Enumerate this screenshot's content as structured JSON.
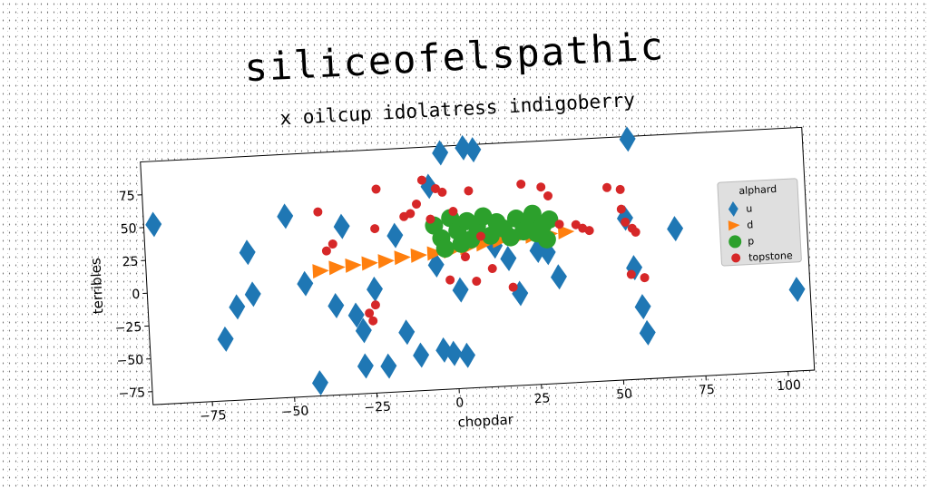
{
  "chart_data": {
    "type": "scatter",
    "title": "siliceofelspathic",
    "subtitle": "x oilcup idolatress indigoberry",
    "xlabel": "chopdar",
    "ylabel": "terribles",
    "xlim": [
      -93,
      108
    ],
    "ylim": [
      -85,
      100
    ],
    "xticks": [
      -75,
      -50,
      -25,
      0,
      25,
      50,
      75,
      100
    ],
    "yticks": [
      -75,
      -50,
      -25,
      0,
      25,
      50,
      75
    ],
    "grid": false,
    "legend": {
      "title": "alphard",
      "placement": "right"
    },
    "series": [
      {
        "name": "u",
        "marker": "diamond",
        "color": "#1f77b4",
        "points": [
          [
            -90,
            52
          ],
          [
            -70,
            -38
          ],
          [
            -66,
            -14
          ],
          [
            -62,
            27
          ],
          [
            -61,
            -5
          ],
          [
            -50,
            53
          ],
          [
            -45,
            1
          ],
          [
            -42,
            -75
          ],
          [
            -36,
            -17
          ],
          [
            -33,
            43
          ],
          [
            -30,
            -25
          ],
          [
            -28,
            -37
          ],
          [
            -28,
            -64
          ],
          [
            -24,
            -6
          ],
          [
            -21,
            -65
          ],
          [
            -17,
            34
          ],
          [
            -15,
            -40
          ],
          [
            -11,
            -58
          ],
          [
            -6,
            70
          ],
          [
            -5,
            10
          ],
          [
            -4,
            -55
          ],
          [
            -2,
            95
          ],
          [
            -1,
            -58
          ],
          [
            2,
            -10
          ],
          [
            3,
            -60
          ],
          [
            5,
            98
          ],
          [
            8,
            96
          ],
          [
            13,
            22
          ],
          [
            17,
            12
          ],
          [
            20,
            -15
          ],
          [
            26,
            17
          ],
          [
            29,
            15
          ],
          [
            32,
            -4
          ],
          [
            53,
            38
          ],
          [
            55,
            98
          ],
          [
            55,
            0
          ],
          [
            57,
            -30
          ],
          [
            58,
            -50
          ],
          [
            68,
            28
          ],
          [
            104,
            -23
          ]
        ]
      },
      {
        "name": "d",
        "marker": "triangle-right",
        "color": "#ff7f0e",
        "points": [
          [
            -40,
            10
          ],
          [
            -35,
            12
          ],
          [
            -30,
            13
          ],
          [
            -25,
            14
          ],
          [
            -20,
            15
          ],
          [
            -15,
            17
          ],
          [
            -10,
            18
          ],
          [
            -5,
            19
          ],
          [
            0,
            20
          ],
          [
            5,
            22
          ],
          [
            10,
            24
          ],
          [
            15,
            26
          ],
          [
            20,
            27
          ],
          [
            25,
            28
          ],
          [
            30,
            29
          ],
          [
            35,
            30
          ]
        ]
      },
      {
        "name": "p",
        "marker": "circle",
        "color": "#2ca02c",
        "points": [
          [
            -5,
            40
          ],
          [
            -3,
            30
          ],
          [
            -2,
            22
          ],
          [
            0,
            45
          ],
          [
            2,
            35
          ],
          [
            3,
            25
          ],
          [
            5,
            42
          ],
          [
            6,
            28
          ],
          [
            8,
            38
          ],
          [
            10,
            45
          ],
          [
            12,
            30
          ],
          [
            14,
            40
          ],
          [
            16,
            35
          ],
          [
            18,
            28
          ],
          [
            20,
            42
          ],
          [
            22,
            32
          ],
          [
            24,
            38
          ],
          [
            25,
            45
          ],
          [
            26,
            30
          ],
          [
            28,
            36
          ],
          [
            29,
            25
          ],
          [
            30,
            40
          ]
        ]
      },
      {
        "name": "topstone",
        "marker": "dot",
        "color": "#d62728",
        "points": [
          [
            -40,
            55
          ],
          [
            -38,
            25
          ],
          [
            -36,
            30
          ],
          [
            -26,
            -24
          ],
          [
            -25,
            -30
          ],
          [
            -24,
            -18
          ],
          [
            -23,
            40
          ],
          [
            -22,
            70
          ],
          [
            -14,
            48
          ],
          [
            -12,
            50
          ],
          [
            -10,
            57
          ],
          [
            -8,
            75
          ],
          [
            -6,
            45
          ],
          [
            -4,
            68
          ],
          [
            -2,
            65
          ],
          [
            -1,
            -2
          ],
          [
            1,
            50
          ],
          [
            4,
            15
          ],
          [
            6,
            65
          ],
          [
            7,
            -4
          ],
          [
            9,
            30
          ],
          [
            12,
            5
          ],
          [
            18,
            -10
          ],
          [
            22,
            68
          ],
          [
            28,
            65
          ],
          [
            30,
            58
          ],
          [
            33,
            36
          ],
          [
            38,
            35
          ],
          [
            40,
            32
          ],
          [
            42,
            30
          ],
          [
            48,
            62
          ],
          [
            52,
            60
          ],
          [
            52,
            45
          ],
          [
            53,
            35
          ],
          [
            54,
            -5
          ],
          [
            55,
            30
          ],
          [
            56,
            27
          ],
          [
            58,
            -8
          ]
        ]
      }
    ]
  }
}
